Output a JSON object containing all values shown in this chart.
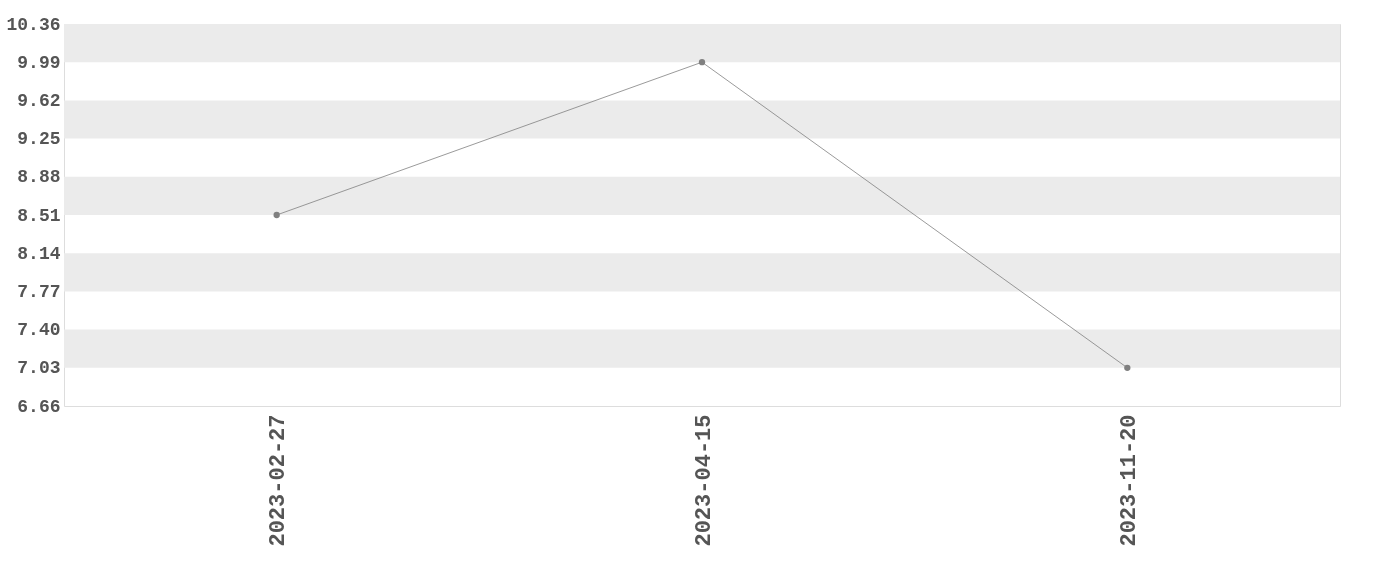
{
  "chart_data": {
    "type": "line",
    "categories": [
      "2023-02-27",
      "2023-04-15",
      "2023-11-20"
    ],
    "series": [
      {
        "color": "#808080",
        "values": [
          8.51,
          9.99,
          7.03
        ]
      }
    ],
    "ylim": [
      6.66,
      10.36
    ],
    "yticks": [
      6.66,
      7.03,
      {
        "value": 7.4,
        "label": "7.40"
      },
      7.77,
      8.14,
      8.51,
      8.88,
      9.25,
      9.62,
      9.99,
      10.36
    ],
    "bands": [
      {
        "axis": "y",
        "from": 9.99,
        "to": 10.36,
        "color": "#ebebeb"
      },
      {
        "axis": "y",
        "from": 9.25,
        "to": 9.62,
        "color": "#ebebeb"
      },
      {
        "axis": "y",
        "from": 8.51,
        "to": 8.88,
        "color": "#ebebeb"
      },
      {
        "axis": "y",
        "from": 7.77,
        "to": 8.14,
        "color": "#ebebeb"
      },
      {
        "axis": "y",
        "from": 7.03,
        "to": 7.4,
        "color": "#ebebeb"
      }
    ],
    "grid": false,
    "marker": "circle",
    "line_style": "solid"
  }
}
